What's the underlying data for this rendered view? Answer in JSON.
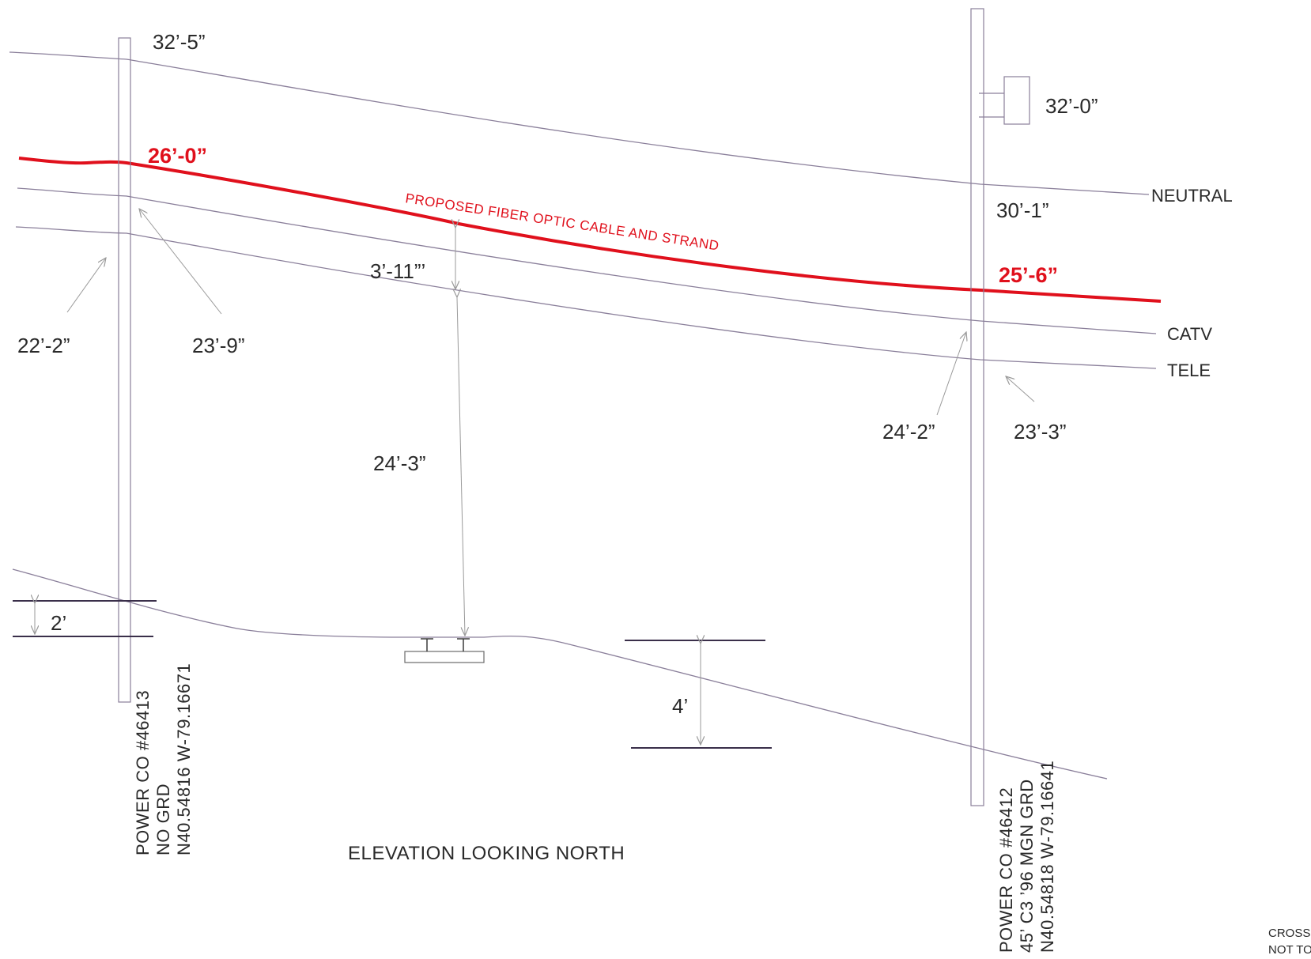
{
  "colors": {
    "proposed": "#e0101c",
    "line": "#8a7f9a",
    "dimension": "#9a9a9a",
    "text": "#2a2a2a"
  },
  "left_pole": {
    "attachment_top": "32’-5”",
    "proposed_attachment": "26’-0”",
    "catv_attachment": "23’-9”",
    "tele_attachment": "22’-2”",
    "grade_offset": "2’",
    "label_lines": [
      "POWER CO #46413",
      "NO GRD",
      "N40.54816  W-79.16671"
    ]
  },
  "right_pole": {
    "transformer_height": "32’-0”",
    "neutral_attachment": "30’-1”",
    "proposed_attachment": "25’-6”",
    "catv_attachment": "24’-2”",
    "tele_attachment": "23’-3”",
    "label_lines": [
      "POWER CO #46412",
      "45’ C3 ’96  MGN GRD",
      "N40.54818  W-79.16641"
    ]
  },
  "midspan": {
    "separation": "3’-11”’",
    "ground_clearance": "24’-3”",
    "grade_offset": "4’"
  },
  "wires": {
    "neutral": "NEUTRAL",
    "catv": "CATV",
    "tele": "TELE"
  },
  "proposed_label": "PROPOSED FIBER OPTIC CABLE AND STRAND",
  "caption": "ELEVATION LOOKING NORTH",
  "note_lines": [
    "CROSSI",
    "NOT TO"
  ]
}
